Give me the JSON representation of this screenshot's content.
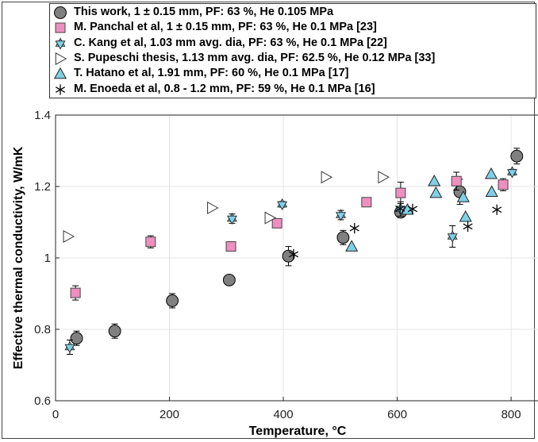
{
  "chart_data": {
    "type": "scatter",
    "xlabel": "Temperature, °C",
    "ylabel": "Effective thermal conductivity, W/mK",
    "xlim": [
      0,
      850
    ],
    "ylim": [
      0.6,
      1.4
    ],
    "xticks": [
      "0",
      "200",
      "400",
      "600",
      "800"
    ],
    "xtick_values": [
      0,
      200,
      400,
      600,
      800
    ],
    "yticks": [
      "0.6",
      "0.8",
      "1",
      "1.2",
      "1.4"
    ],
    "ytick_values": [
      0.6,
      0.8,
      1.0,
      1.2,
      1.4
    ],
    "grid": true,
    "legend_position": "top",
    "series": [
      {
        "name": "This work, 1 ± 0.15 mm, PF: 63 %, He 0.105 MPa",
        "marker": "circle",
        "fill": "#808080",
        "stroke": "#000000",
        "points": [
          {
            "x": 37,
            "y": 0.775,
            "err": 0.02
          },
          {
            "x": 104,
            "y": 0.795,
            "err": 0.02
          },
          {
            "x": 205,
            "y": 0.88,
            "err": 0.02
          },
          {
            "x": 305,
            "y": 0.938,
            "err": 0.01
          },
          {
            "x": 409,
            "y": 1.005,
            "err": 0.027
          },
          {
            "x": 505,
            "y": 1.057,
            "err": 0.02
          },
          {
            "x": 606,
            "y": 1.128,
            "err": 0.015
          },
          {
            "x": 710,
            "y": 1.185,
            "err": 0.035
          },
          {
            "x": 810,
            "y": 1.285,
            "err": 0.022
          }
        ]
      },
      {
        "name": "M. Panchal et al, 1 ± 0.15 mm, PF: 63 %, He 0.1 MPa [23]",
        "marker": "square",
        "fill": "#ef8fbf",
        "stroke": "#444444",
        "points": [
          {
            "x": 35,
            "y": 0.902,
            "err": 0.02
          },
          {
            "x": 167,
            "y": 1.045,
            "err": 0.017
          },
          {
            "x": 308,
            "y": 1.032,
            "err": 0.013
          },
          {
            "x": 389,
            "y": 1.097,
            "err": 0.008
          },
          {
            "x": 546,
            "y": 1.156,
            "err": 0.005
          },
          {
            "x": 606,
            "y": 1.182,
            "err": 0.03
          },
          {
            "x": 704,
            "y": 1.215,
            "err": 0.025
          },
          {
            "x": 786,
            "y": 1.205,
            "err": 0.017
          }
        ]
      },
      {
        "name": "C. Kang et al, 1.03 mm avg. dia, PF: 63 %, He 0.1 MPa [22]",
        "marker": "hexagram",
        "fill": "#7fd0e6",
        "stroke": "#222222",
        "points": [
          {
            "x": 25,
            "y": 0.75,
            "err": 0.02
          },
          {
            "x": 310,
            "y": 1.11,
            "err": 0.013
          },
          {
            "x": 398,
            "y": 1.15,
            "err": 0.008
          },
          {
            "x": 501,
            "y": 1.12,
            "err": 0.013
          },
          {
            "x": 606,
            "y": 1.137,
            "err": 0.02
          },
          {
            "x": 697,
            "y": 1.06,
            "err": 0.03
          },
          {
            "x": 802,
            "y": 1.24,
            "err": 0.008
          }
        ]
      },
      {
        "name": "S. Pupeschi thesis, 1.13 mm avg. dia, PF: 62.5 %, He 0.12 MPa [33]",
        "marker": "triangle-right",
        "fill": "#ffffff",
        "stroke": "#333333",
        "points": [
          {
            "x": 22,
            "y": 1.06
          },
          {
            "x": 275,
            "y": 1.14
          },
          {
            "x": 376,
            "y": 1.112
          },
          {
            "x": 475,
            "y": 1.226
          },
          {
            "x": 575,
            "y": 1.226
          }
        ]
      },
      {
        "name": "T. Hatano et al, 1.91 mm, PF: 60 %, He 0.1 MPa [17]",
        "marker": "triangle-up",
        "fill": "#7fd0e6",
        "stroke": "#222222",
        "points": [
          {
            "x": 520,
            "y": 1.032
          },
          {
            "x": 618,
            "y": 1.135
          },
          {
            "x": 665,
            "y": 1.215
          },
          {
            "x": 668,
            "y": 1.182
          },
          {
            "x": 716,
            "y": 1.17
          },
          {
            "x": 720,
            "y": 1.115
          },
          {
            "x": 765,
            "y": 1.235
          },
          {
            "x": 766,
            "y": 1.185
          }
        ]
      },
      {
        "name": "M. Enoeda et al, 0.8 - 1.2 mm, PF: 59 %, He 0.1 MPa [16]",
        "marker": "asterisk",
        "fill": "none",
        "stroke": "#000000",
        "points": [
          {
            "x": 418,
            "y": 1.01
          },
          {
            "x": 525,
            "y": 1.083
          },
          {
            "x": 605,
            "y": 1.138
          },
          {
            "x": 627,
            "y": 1.137
          },
          {
            "x": 724,
            "y": 1.088
          },
          {
            "x": 775,
            "y": 1.135
          }
        ]
      }
    ]
  }
}
